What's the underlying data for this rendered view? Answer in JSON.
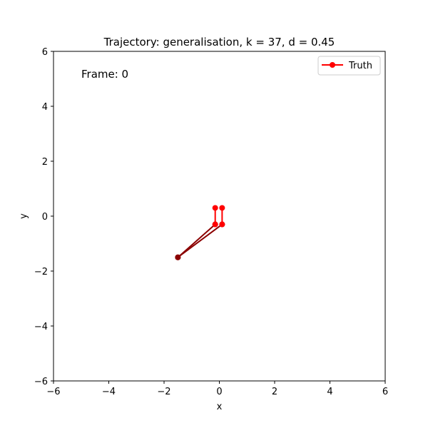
{
  "chart_data": {
    "type": "line",
    "title": "Trajectory: generalisation, k = 37, d = 0.45",
    "annotation": "Frame: 0",
    "xlabel": "x",
    "ylabel": "y",
    "xlim": [
      -6,
      6
    ],
    "ylim": [
      -6,
      6
    ],
    "x_ticks": [
      -6,
      -4,
      -2,
      0,
      2,
      4,
      6
    ],
    "y_ticks": [
      -6,
      -4,
      -2,
      0,
      2,
      4,
      6
    ],
    "x_tick_labels": [
      "−6",
      "−4",
      "−2",
      "0",
      "2",
      "4",
      "6"
    ],
    "y_tick_labels": [
      "−6",
      "−4",
      "−2",
      "0",
      "2",
      "4",
      "6"
    ],
    "grid": false,
    "legend": {
      "placement": "top-right",
      "entries": [
        {
          "label": "Truth",
          "color": "#ff0000",
          "marker": "circle"
        }
      ]
    },
    "series": [
      {
        "name": "Truth",
        "color": "#ff0000",
        "segments": [
          {
            "x": [
              -0.15,
              -0.15
            ],
            "y": [
              0.3,
              -0.3
            ]
          },
          {
            "x": [
              0.1,
              0.1
            ],
            "y": [
              0.3,
              -0.3
            ]
          }
        ]
      }
    ],
    "unlabeled_series": [
      {
        "color": "#8b0000",
        "segments": [
          {
            "x": [
              -1.5,
              -0.15
            ],
            "y": [
              -1.5,
              -0.3
            ]
          },
          {
            "x": [
              -1.5,
              0.1
            ],
            "y": [
              -1.5,
              -0.3
            ]
          }
        ]
      }
    ]
  }
}
